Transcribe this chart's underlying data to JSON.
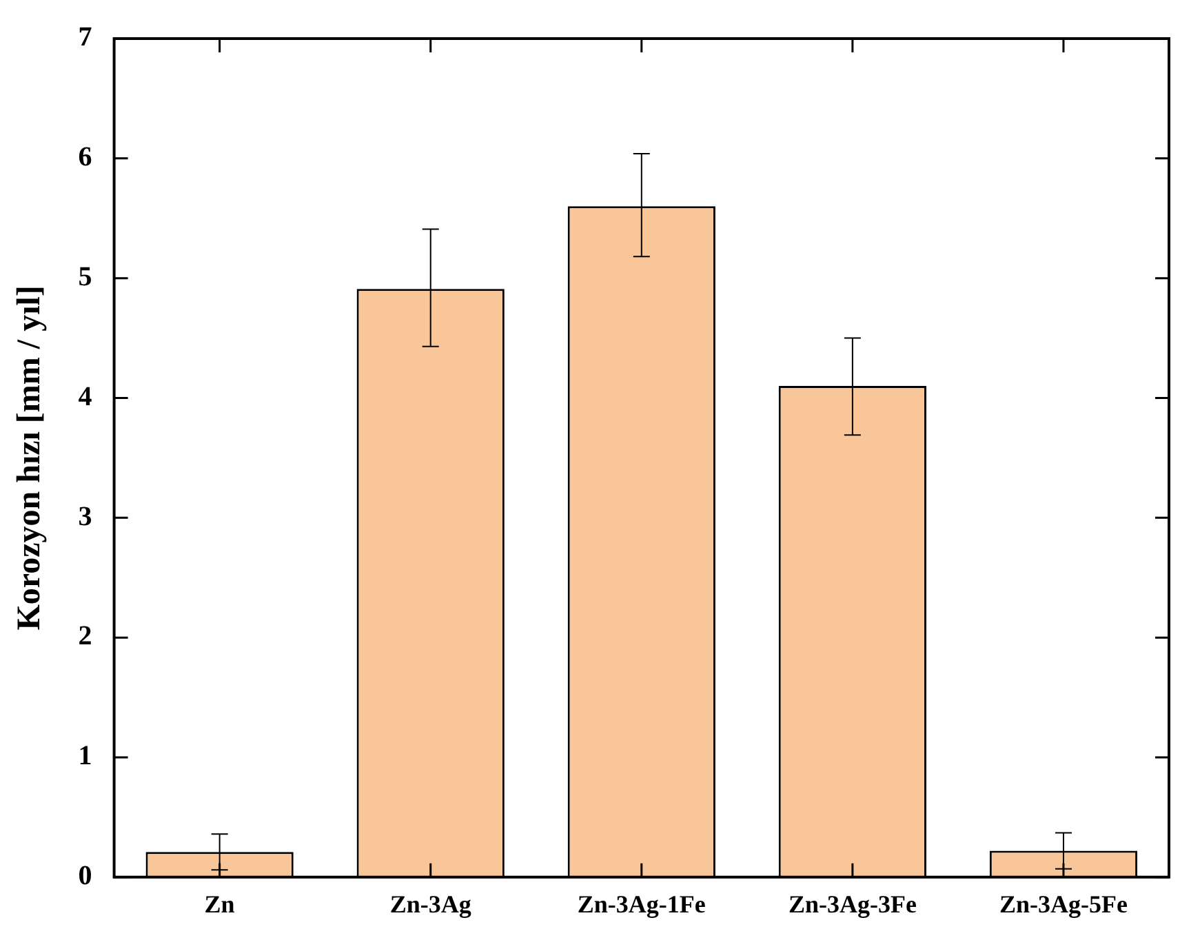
{
  "chart_data": {
    "type": "bar",
    "ylabel": "Korozyon hızı [mm / yıl]",
    "categories": [
      "Zn",
      "Zn-3Ag",
      "Zn-3Ag-1Fe",
      "Zn-3Ag-3Fe",
      "Zn-3Ag-5Fe"
    ],
    "values": [
      0.21,
      4.91,
      5.6,
      4.1,
      0.22
    ],
    "errors": [
      [
        0.06,
        0.36
      ],
      [
        4.43,
        5.41
      ],
      [
        5.18,
        6.04
      ],
      [
        3.69,
        4.5
      ],
      [
        0.07,
        0.37
      ]
    ],
    "color": "#f9c699",
    "ylim": [
      0,
      7
    ],
    "yticks": [
      0,
      1,
      2,
      3,
      4,
      5,
      6,
      7
    ],
    "grid": false,
    "legend": false
  }
}
